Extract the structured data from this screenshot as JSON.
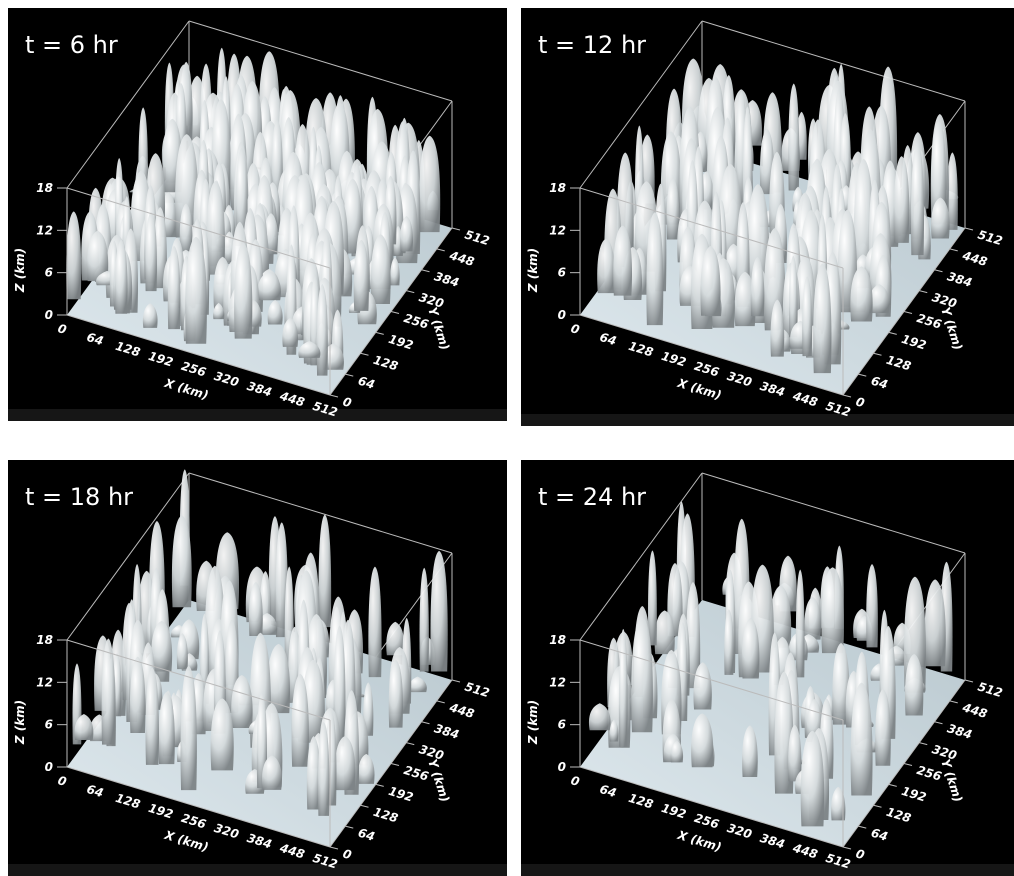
{
  "panels": [
    {
      "title": "t = 6 hr",
      "z_label": "Z (km)",
      "x_label": "X (km)",
      "y_label": "Y (km)",
      "z_ticks": [
        "0",
        "6",
        "12",
        "18"
      ],
      "x_ticks": [
        "0",
        "64",
        "128",
        "192",
        "256",
        "320",
        "384",
        "448",
        "512"
      ],
      "y_ticks": [
        "0",
        "64",
        "128",
        "192",
        "256",
        "320",
        "384",
        "448",
        "512"
      ]
    },
    {
      "title": "t = 12 hr",
      "z_label": "Z (km)",
      "x_label": "X (km)",
      "y_label": "Y (km)",
      "z_ticks": [
        "0",
        "6",
        "12",
        "18"
      ],
      "x_ticks": [
        "0",
        "64",
        "128",
        "192",
        "256",
        "320",
        "384",
        "448",
        "512"
      ],
      "y_ticks": [
        "0",
        "64",
        "128",
        "192",
        "256",
        "320",
        "384",
        "448",
        "512"
      ]
    },
    {
      "title": "t = 18 hr",
      "z_label": "Z (km)",
      "x_label": "X (km)",
      "y_label": "Y (km)",
      "z_ticks": [
        "0",
        "6",
        "12",
        "18"
      ],
      "x_ticks": [
        "0",
        "64",
        "128",
        "192",
        "256",
        "320",
        "384",
        "448",
        "512"
      ],
      "y_ticks": [
        "0",
        "64",
        "128",
        "192",
        "256",
        "320",
        "384",
        "448",
        "512"
      ]
    },
    {
      "title": "t = 24 hr",
      "z_label": "Z (km)",
      "x_label": "X (km)",
      "y_label": "Y (km)",
      "z_ticks": [
        "0",
        "6",
        "12",
        "18"
      ],
      "x_ticks": [
        "0",
        "64",
        "128",
        "192",
        "256",
        "320",
        "384",
        "448",
        "512"
      ],
      "y_ticks": [
        "0",
        "64",
        "128",
        "192",
        "256",
        "320",
        "384",
        "448",
        "512"
      ]
    }
  ]
}
